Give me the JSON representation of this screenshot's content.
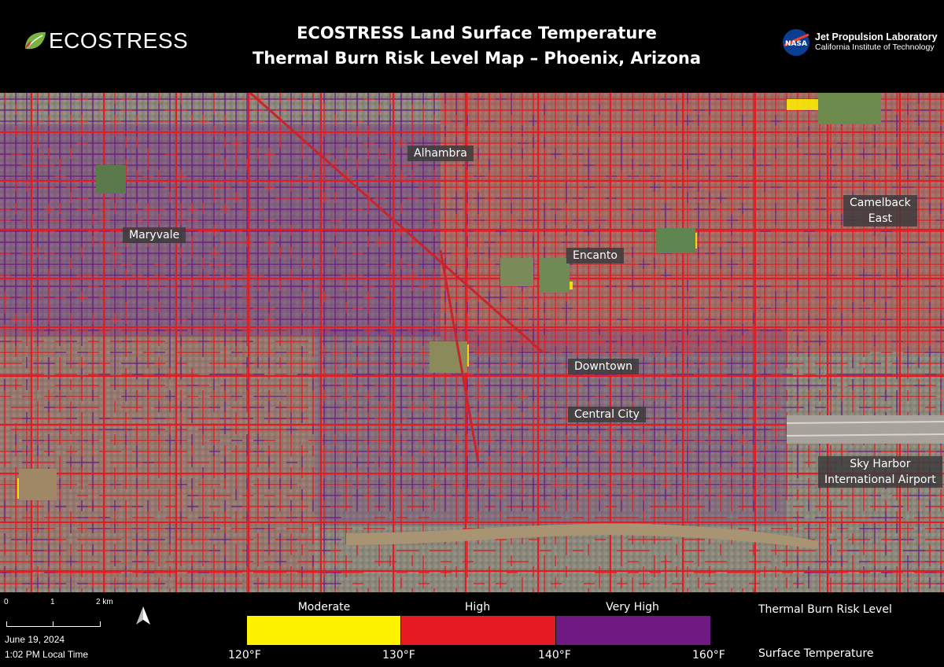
{
  "header": {
    "logo_text": "ECOSTRESS",
    "title_line1": "ECOSTRESS Land Surface Temperature",
    "title_line2": "Thermal Burn Risk Level Map – Phoenix, Arizona",
    "jpl_line1": "Jet Propulsion Laboratory",
    "jpl_line2": "California Institute of Technology",
    "nasa_text": "NASA"
  },
  "map": {
    "place_labels": [
      {
        "text": "Alhambra"
      },
      {
        "text": "Maryvale"
      },
      {
        "text": "Encanto"
      },
      {
        "text": "Camelback\nEast"
      },
      {
        "text": "Downtown"
      },
      {
        "text": "Central City"
      },
      {
        "text": "Sky Harbor\nInternational Airport"
      }
    ]
  },
  "footer": {
    "scale": {
      "ticks": [
        "0",
        "1",
        "2 km"
      ]
    },
    "date": "June 19, 2024",
    "time": "1:02 PM Local Time",
    "legend": {
      "categories": [
        {
          "label": "Moderate",
          "color": "#fff200"
        },
        {
          "label": "High",
          "color": "#e41b23"
        },
        {
          "label": "Very High",
          "color": "#6e1a82"
        }
      ],
      "temps": [
        "120°F",
        "130°F",
        "140°F",
        "160°F"
      ],
      "risk_title": "Thermal Burn Risk Level",
      "temp_title": "Surface Temperature"
    }
  }
}
